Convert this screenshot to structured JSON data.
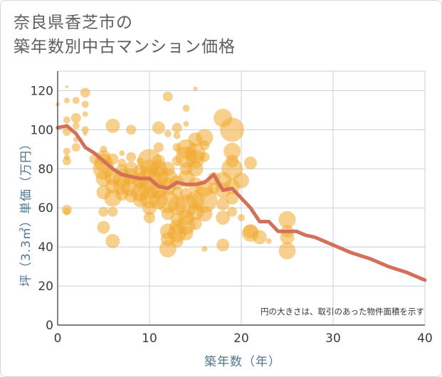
{
  "title_line1": "奈良県香芝市の",
  "title_line2": "築年数別中古マンション価格",
  "colors": {
    "bubble_fill": "#f0a930",
    "bubble_opacity": 0.55,
    "line": "#d2705a",
    "grid": "#c5d1db",
    "axis_title": "#4e7792"
  },
  "chart_data": {
    "type": "scatter",
    "xlabel": "築年数（年）",
    "ylabel": "坪（3.3㎡）単価（万円）",
    "xlim": [
      0,
      40
    ],
    "ylim": [
      0,
      130
    ],
    "x_ticks": [
      0,
      10,
      20,
      30,
      40
    ],
    "y_ticks": [
      0,
      20,
      40,
      60,
      80,
      100,
      120
    ],
    "grid": true,
    "note": "円の大きさは、取引のあった物件面積を示す",
    "series": [
      {
        "kind": "line",
        "points": [
          [
            0,
            101
          ],
          [
            1,
            102
          ],
          [
            2,
            98
          ],
          [
            3,
            91
          ],
          [
            4,
            88
          ],
          [
            5,
            84
          ],
          [
            6,
            80
          ],
          [
            7,
            77
          ],
          [
            8,
            76
          ],
          [
            9,
            75
          ],
          [
            10,
            75
          ],
          [
            11,
            71
          ],
          [
            12,
            70
          ],
          [
            13,
            73
          ],
          [
            14,
            72
          ],
          [
            15,
            72
          ],
          [
            16,
            73
          ],
          [
            17,
            77
          ],
          [
            18,
            69
          ],
          [
            19,
            70
          ],
          [
            20,
            65
          ],
          [
            21,
            60
          ],
          [
            22,
            53
          ],
          [
            23,
            53
          ],
          [
            24,
            48
          ],
          [
            25,
            48
          ],
          [
            26,
            48
          ],
          [
            27,
            46
          ],
          [
            28,
            45
          ],
          [
            30,
            41
          ],
          [
            32,
            37
          ],
          [
            34,
            34
          ],
          [
            36,
            30
          ],
          [
            38,
            27
          ],
          [
            40,
            23
          ]
        ]
      },
      {
        "kind": "bubble",
        "points": [
          [
            0,
            113,
            3
          ],
          [
            1,
            122,
            2
          ],
          [
            1,
            115,
            4
          ],
          [
            1,
            105,
            5
          ],
          [
            1,
            99,
            6
          ],
          [
            1,
            89,
            5
          ],
          [
            1,
            86,
            4
          ],
          [
            1,
            84,
            6
          ],
          [
            1,
            59,
            7
          ],
          [
            1,
            58,
            5
          ],
          [
            2,
            115,
            5
          ],
          [
            2,
            106,
            7
          ],
          [
            2,
            102,
            5
          ],
          [
            2,
            95,
            4
          ],
          [
            2,
            91,
            6
          ],
          [
            3,
            119,
            7
          ],
          [
            3,
            113,
            5
          ],
          [
            3,
            108,
            4
          ],
          [
            3,
            100,
            5
          ],
          [
            3,
            98,
            3
          ],
          [
            4,
            85,
            7
          ],
          [
            5,
            86,
            10
          ],
          [
            5,
            83,
            13
          ],
          [
            5,
            80,
            15
          ],
          [
            5,
            75,
            11
          ],
          [
            5,
            68,
            10
          ],
          [
            5,
            58,
            7
          ],
          [
            5,
            50,
            9
          ],
          [
            5,
            90,
            5
          ],
          [
            6,
            102,
            10
          ],
          [
            6,
            85,
            8
          ],
          [
            6,
            76,
            12
          ],
          [
            6,
            71,
            10
          ],
          [
            6,
            65,
            12
          ],
          [
            6,
            58,
            7
          ],
          [
            6,
            43,
            10
          ],
          [
            7,
            88,
            4
          ],
          [
            7,
            83,
            6
          ],
          [
            7,
            79,
            9
          ],
          [
            7,
            75,
            13
          ],
          [
            7,
            71,
            12
          ],
          [
            7,
            67,
            9
          ],
          [
            8,
            100,
            7
          ],
          [
            8,
            86,
            7
          ],
          [
            8,
            80,
            10
          ],
          [
            8,
            76,
            11
          ],
          [
            8,
            71,
            14
          ],
          [
            8,
            66,
            9
          ],
          [
            9,
            84,
            5
          ],
          [
            9,
            79,
            9
          ],
          [
            9,
            74,
            11
          ],
          [
            9,
            68,
            13
          ],
          [
            9,
            64,
            10
          ],
          [
            10,
            84,
            17
          ],
          [
            10,
            80,
            13
          ],
          [
            10,
            75,
            16
          ],
          [
            10,
            70,
            15
          ],
          [
            10,
            65,
            14
          ],
          [
            10,
            60,
            10
          ],
          [
            10,
            55,
            8
          ],
          [
            11,
            101,
            9
          ],
          [
            11,
            91,
            7
          ],
          [
            11,
            84,
            9
          ],
          [
            11,
            80,
            12
          ],
          [
            11,
            76,
            14
          ],
          [
            11,
            69,
            12
          ],
          [
            11,
            64,
            13
          ],
          [
            12,
            117,
            7
          ],
          [
            12,
            98,
            5
          ],
          [
            12,
            80,
            10
          ],
          [
            12,
            75,
            14
          ],
          [
            12,
            71,
            12
          ],
          [
            12,
            63,
            16
          ],
          [
            12,
            57,
            9
          ],
          [
            12,
            48,
            11
          ],
          [
            12,
            44,
            10
          ],
          [
            12,
            39,
            12
          ],
          [
            13,
            101,
            7
          ],
          [
            13,
            97,
            5
          ],
          [
            13,
            91,
            6
          ],
          [
            13,
            84,
            7
          ],
          [
            13,
            73,
            10
          ],
          [
            13,
            68,
            8
          ],
          [
            13,
            61,
            13
          ],
          [
            13,
            54,
            9
          ],
          [
            13,
            50,
            11
          ],
          [
            13,
            47,
            13
          ],
          [
            13,
            43,
            9
          ],
          [
            14,
            111,
            5
          ],
          [
            14,
            103,
            4
          ],
          [
            14,
            90,
            14
          ],
          [
            14,
            86,
            15
          ],
          [
            14,
            80,
            9
          ],
          [
            14,
            75,
            12
          ],
          [
            14,
            67,
            9
          ],
          [
            14,
            61,
            16
          ],
          [
            14,
            55,
            11
          ],
          [
            14,
            51,
            13
          ],
          [
            14,
            47,
            10
          ],
          [
            15,
            121,
            3
          ],
          [
            15,
            95,
            10
          ],
          [
            15,
            88,
            14
          ],
          [
            15,
            85,
            13
          ],
          [
            15,
            80,
            11
          ],
          [
            15,
            72,
            10
          ],
          [
            15,
            64,
            13
          ],
          [
            15,
            58,
            12
          ],
          [
            15,
            52,
            9
          ],
          [
            16,
            96,
            12
          ],
          [
            16,
            92,
            7
          ],
          [
            16,
            86,
            7
          ],
          [
            16,
            70,
            12
          ],
          [
            16,
            64,
            18
          ],
          [
            16,
            57,
            11
          ],
          [
            16,
            39,
            4
          ],
          [
            17,
            75,
            9
          ],
          [
            17,
            70,
            8
          ],
          [
            18,
            106,
            13
          ],
          [
            18,
            74,
            12
          ],
          [
            18,
            69,
            11
          ],
          [
            18,
            62,
            9
          ],
          [
            18,
            55,
            10
          ],
          [
            18,
            41,
            9
          ],
          [
            19,
            100,
            17
          ],
          [
            19,
            89,
            12
          ],
          [
            19,
            84,
            9
          ],
          [
            19,
            80,
            15
          ],
          [
            19,
            71,
            11
          ],
          [
            19,
            65,
            9
          ],
          [
            19,
            58,
            7
          ],
          [
            20,
            74,
            11
          ],
          [
            20,
            55,
            5
          ],
          [
            21,
            83,
            9
          ],
          [
            21,
            48,
            10
          ],
          [
            21,
            47,
            12
          ],
          [
            22,
            45,
            10
          ],
          [
            23,
            43,
            4
          ],
          [
            25,
            54,
            12
          ],
          [
            25,
            48,
            9
          ],
          [
            25,
            45,
            10
          ],
          [
            25,
            38,
            12
          ]
        ]
      }
    ]
  }
}
